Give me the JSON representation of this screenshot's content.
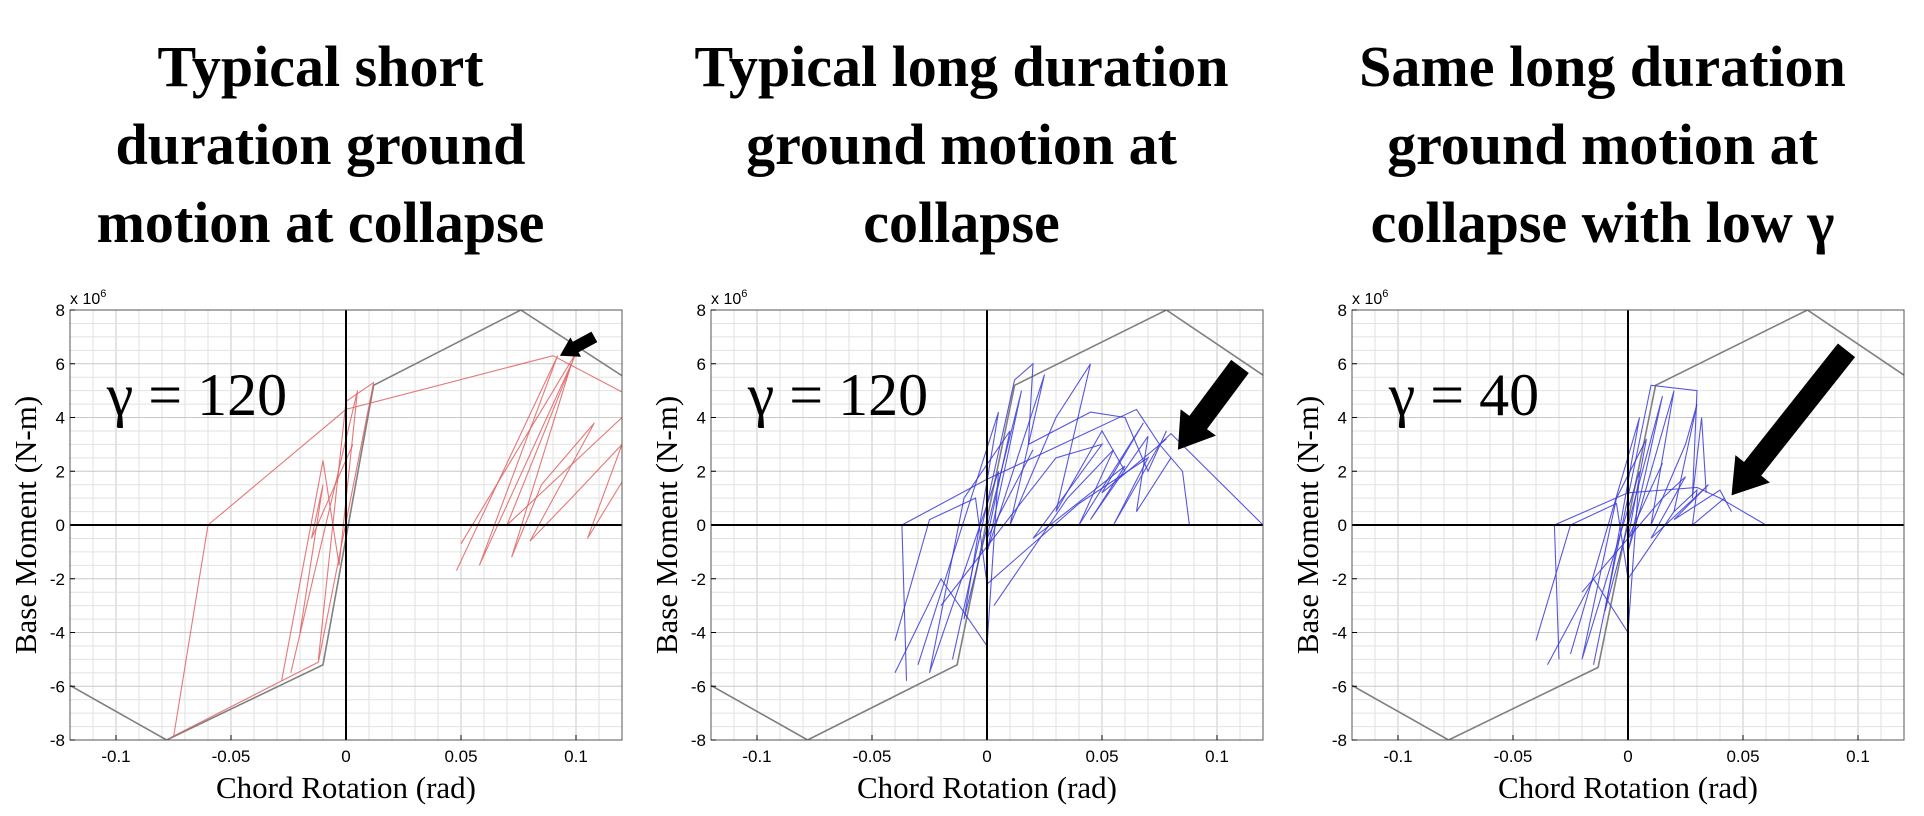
{
  "chart_data": [
    {
      "type": "line",
      "title_lines": [
        "Typical short",
        "duration ground",
        "motion at collapse"
      ],
      "xlabel": "Chord Rotation (rad)",
      "ylabel": "Base Moment (N-m)",
      "y_exponent_label": "x 10",
      "y_exponent_power": "6",
      "annotation": "γ = 120",
      "xlim": [
        -0.12,
        0.12
      ],
      "ylim": [
        -8,
        8
      ],
      "x_ticks": [
        {
          "value": -0.1,
          "label": "-0.1"
        },
        {
          "value": -0.05,
          "label": "-0.05"
        },
        {
          "value": 0,
          "label": "0"
        },
        {
          "value": 0.05,
          "label": "0.05"
        },
        {
          "value": 0.1,
          "label": "0.1"
        }
      ],
      "y_ticks": [
        {
          "value": -8,
          "label": "-8"
        },
        {
          "value": -6,
          "label": "-6"
        },
        {
          "value": -4,
          "label": "-4"
        },
        {
          "value": -2,
          "label": "-2"
        },
        {
          "value": 0,
          "label": "0"
        },
        {
          "value": 2,
          "label": "2"
        },
        {
          "value": 4,
          "label": "4"
        },
        {
          "value": 6,
          "label": "6"
        },
        {
          "value": 8,
          "label": "8"
        }
      ],
      "grid": true,
      "arrow": {
        "from": [
          0.108,
          7.0
        ],
        "to": [
          0.093,
          6.3
        ],
        "size": "small"
      },
      "series": [
        {
          "color": "#808080",
          "points": [
            [
              -0.14,
              -5.0
            ],
            [
              -0.078,
              -8.0
            ],
            [
              -0.01,
              -5.2
            ],
            [
              0.012,
              5.2
            ],
            [
              0.076,
              8.0
            ],
            [
              0.13,
              5.0
            ]
          ]
        },
        {
          "color": "#e06060",
          "points": [
            [
              -0.075,
              -7.9
            ],
            [
              -0.06,
              0.0
            ],
            [
              0.0,
              4.3
            ],
            [
              0.09,
              6.3
            ],
            [
              0.13,
              4.5
            ]
          ]
        },
        {
          "color": "#e06060",
          "points": [
            [
              -0.076,
              -7.9
            ],
            [
              -0.012,
              -5.1
            ],
            [
              0.012,
              5.3
            ],
            [
              0.0,
              4.6
            ],
            [
              -0.012,
              -5.0
            ]
          ]
        },
        {
          "color": "#e06060",
          "points": [
            [
              -0.028,
              -5.8
            ],
            [
              -0.01,
              2.4
            ],
            [
              -0.003,
              -1.5
            ],
            [
              0.005,
              5.0
            ],
            [
              -0.024,
              -5.5
            ]
          ]
        },
        {
          "color": "#e06060",
          "points": [
            [
              -0.02,
              -4.0
            ],
            [
              -0.01,
              1.5
            ],
            [
              -0.015,
              -0.5
            ],
            [
              0.003,
              3.0
            ]
          ]
        },
        {
          "color": "#e06060",
          "points": [
            [
              0.048,
              -1.7
            ],
            [
              0.092,
              6.3
            ],
            [
              0.058,
              -1.5
            ],
            [
              0.098,
              6.0
            ],
            [
              0.072,
              -1.2
            ],
            [
              0.085,
              1.5
            ],
            [
              0.108,
              3.8
            ],
            [
              0.08,
              -0.6
            ],
            [
              0.098,
              1.0
            ],
            [
              0.12,
              3.0
            ],
            [
              0.105,
              -0.5
            ],
            [
              0.12,
              1.6
            ]
          ]
        },
        {
          "color": "#e06060",
          "points": [
            [
              0.05,
              -0.7
            ],
            [
              0.1,
              6.4
            ],
            [
              0.07,
              0.0
            ],
            [
              0.12,
              4.0
            ]
          ]
        }
      ]
    },
    {
      "type": "line",
      "title_lines": [
        "Typical long duration",
        "ground motion at",
        "collapse"
      ],
      "xlabel": "Chord Rotation (rad)",
      "ylabel": "Base Moment (N-m)",
      "y_exponent_label": "x 10",
      "y_exponent_power": "6",
      "annotation": "γ = 120",
      "xlim": [
        -0.12,
        0.12
      ],
      "ylim": [
        -8,
        8
      ],
      "x_ticks": [
        {
          "value": -0.1,
          "label": "-0.1"
        },
        {
          "value": -0.05,
          "label": "-0.05"
        },
        {
          "value": 0,
          "label": "0"
        },
        {
          "value": 0.05,
          "label": "0.05"
        },
        {
          "value": 0.1,
          "label": "0.1"
        }
      ],
      "y_ticks": [
        {
          "value": -8,
          "label": "-8"
        },
        {
          "value": -6,
          "label": "-6"
        },
        {
          "value": -4,
          "label": "-4"
        },
        {
          "value": -2,
          "label": "-2"
        },
        {
          "value": 0,
          "label": "0"
        },
        {
          "value": 2,
          "label": "2"
        },
        {
          "value": 4,
          "label": "4"
        },
        {
          "value": 6,
          "label": "6"
        },
        {
          "value": 8,
          "label": "8"
        }
      ],
      "grid": true,
      "arrow": {
        "from": [
          0.11,
          5.9
        ],
        "to": [
          0.083,
          2.8
        ],
        "size": "large"
      },
      "series": [
        {
          "color": "#808080",
          "points": [
            [
              -0.14,
              -5.0
            ],
            [
              -0.078,
              -8.0
            ],
            [
              -0.013,
              -5.2
            ],
            [
              0.012,
              5.2
            ],
            [
              0.078,
              8.0
            ],
            [
              0.13,
              5.0
            ]
          ]
        },
        {
          "color": "#3a3ad8",
          "points": [
            [
              -0.035,
              -5.8
            ],
            [
              -0.037,
              0.0
            ],
            [
              0.0,
              1.7
            ],
            [
              0.065,
              4.3
            ],
            [
              0.075,
              3.0
            ],
            [
              0.08,
              3.4
            ],
            [
              0.12,
              0.0
            ]
          ]
        },
        {
          "color": "#3a3ad8",
          "points": [
            [
              -0.015,
              -5.0
            ],
            [
              0.012,
              5.4
            ],
            [
              0.02,
              6.0
            ],
            [
              0.018,
              3.0
            ],
            [
              0.045,
              4.2
            ],
            [
              0.06,
              4.0
            ],
            [
              0.07,
              2.0
            ],
            [
              0.078,
              3.5
            ]
          ]
        },
        {
          "color": "#3a3ad8",
          "points": [
            [
              -0.04,
              -4.3
            ],
            [
              -0.025,
              0.2
            ],
            [
              -0.005,
              1.0
            ],
            [
              0.0,
              -2.2
            ],
            [
              0.04,
              0.8
            ],
            [
              0.07,
              2.5
            ],
            [
              0.055,
              0.0
            ],
            [
              0.075,
              3.0
            ],
            [
              0.085,
              2.0
            ],
            [
              0.088,
              0.0
            ]
          ]
        },
        {
          "color": "#3a3ad8",
          "points": [
            [
              -0.03,
              -5.2
            ],
            [
              0.005,
              4.2
            ],
            [
              -0.01,
              -3.5
            ],
            [
              0.015,
              5.0
            ],
            [
              0.0,
              -1.0
            ],
            [
              0.025,
              5.6
            ],
            [
              0.01,
              0.0
            ],
            [
              0.03,
              4.0
            ],
            [
              0.045,
              6.0
            ],
            [
              0.03,
              0.5
            ],
            [
              0.05,
              3.5
            ],
            [
              0.06,
              2.0
            ]
          ]
        },
        {
          "color": "#3a3ad8",
          "points": [
            [
              -0.02,
              -3.0
            ],
            [
              0.03,
              2.5
            ],
            [
              0.05,
              3.0
            ],
            [
              0.02,
              -0.5
            ],
            [
              0.06,
              2.2
            ],
            [
              0.045,
              0.2
            ],
            [
              0.07,
              3.3
            ],
            [
              0.065,
              0.5
            ],
            [
              0.08,
              2.5
            ]
          ]
        },
        {
          "color": "#3a3ad8",
          "points": [
            [
              -0.04,
              -5.5
            ],
            [
              -0.02,
              -2.0
            ],
            [
              0.0,
              -4.5
            ],
            [
              0.005,
              2.0
            ],
            [
              -0.025,
              -5.5
            ],
            [
              -0.01,
              1.0
            ],
            [
              0.01,
              3.5
            ],
            [
              0.0,
              -0.5
            ],
            [
              0.02,
              2.8
            ]
          ]
        },
        {
          "color": "#3a3ad8",
          "points": [
            [
              0.003,
              -3.0
            ],
            [
              0.035,
              1.0
            ],
            [
              0.055,
              2.8
            ],
            [
              0.04,
              0.0
            ],
            [
              0.068,
              3.8
            ],
            [
              0.05,
              1.2
            ],
            [
              0.078,
              3.2
            ]
          ]
        }
      ]
    },
    {
      "type": "line",
      "title_lines": [
        "Same long duration",
        "ground motion at",
        "collapse with low γ"
      ],
      "xlabel": "Chord Rotation (rad)",
      "ylabel": "Base Moment (N-m)",
      "y_exponent_label": "x 10",
      "y_exponent_power": "6",
      "annotation": "γ = 40",
      "xlim": [
        -0.12,
        0.12
      ],
      "ylim": [
        -8,
        8
      ],
      "x_ticks": [
        {
          "value": -0.1,
          "label": "-0.1"
        },
        {
          "value": -0.05,
          "label": "-0.05"
        },
        {
          "value": 0,
          "label": "0"
        },
        {
          "value": 0.05,
          "label": "0.05"
        },
        {
          "value": 0.1,
          "label": "0.1"
        }
      ],
      "y_ticks": [
        {
          "value": -8,
          "label": "-8"
        },
        {
          "value": -6,
          "label": "-6"
        },
        {
          "value": -4,
          "label": "-4"
        },
        {
          "value": -2,
          "label": "-2"
        },
        {
          "value": 0,
          "label": "0"
        },
        {
          "value": 2,
          "label": "2"
        },
        {
          "value": 4,
          "label": "4"
        },
        {
          "value": 6,
          "label": "6"
        },
        {
          "value": 8,
          "label": "8"
        }
      ],
      "grid": true,
      "arrow": {
        "from": [
          0.095,
          6.5
        ],
        "to": [
          0.045,
          1.1
        ],
        "size": "large"
      },
      "series": [
        {
          "color": "#808080",
          "points": [
            [
              -0.14,
              -5.0
            ],
            [
              -0.078,
              -8.0
            ],
            [
              -0.013,
              -5.3
            ],
            [
              0.012,
              5.2
            ],
            [
              0.078,
              8.0
            ],
            [
              0.13,
              5.0
            ]
          ]
        },
        {
          "color": "#3a3ad8",
          "points": [
            [
              -0.03,
              -5.0
            ],
            [
              -0.032,
              0.0
            ],
            [
              0.0,
              1.2
            ],
            [
              0.03,
              1.4
            ],
            [
              0.04,
              1.0
            ],
            [
              0.06,
              0.0
            ]
          ]
        },
        {
          "color": "#3a3ad8",
          "points": [
            [
              -0.015,
              -5.2
            ],
            [
              0.01,
              5.2
            ],
            [
              0.03,
              5.0
            ],
            [
              0.028,
              1.0
            ],
            [
              0.032,
              4.0
            ],
            [
              0.034,
              1.2
            ]
          ]
        },
        {
          "color": "#3a3ad8",
          "points": [
            [
              -0.04,
              -4.3
            ],
            [
              -0.025,
              0.0
            ],
            [
              -0.005,
              0.8
            ],
            [
              0.0,
              -2.0
            ],
            [
              0.02,
              0.5
            ],
            [
              0.03,
              1.3
            ],
            [
              0.028,
              0.0
            ],
            [
              0.042,
              1.0
            ]
          ]
        },
        {
          "color": "#3a3ad8",
          "points": [
            [
              -0.025,
              -4.8
            ],
            [
              0.005,
              4.0
            ],
            [
              -0.01,
              -3.2
            ],
            [
              0.015,
              4.8
            ],
            [
              0.0,
              -1.0
            ],
            [
              0.02,
              5.0
            ],
            [
              0.01,
              0.0
            ],
            [
              0.025,
              3.0
            ],
            [
              0.03,
              4.5
            ],
            [
              0.02,
              0.5
            ]
          ]
        },
        {
          "color": "#3a3ad8",
          "points": [
            [
              -0.035,
              -5.2
            ],
            [
              -0.015,
              -2.0
            ],
            [
              0.0,
              -4.0
            ],
            [
              0.005,
              2.0
            ],
            [
              -0.02,
              -5.0
            ],
            [
              -0.005,
              1.0
            ],
            [
              0.008,
              3.2
            ],
            [
              0.0,
              -0.5
            ],
            [
              0.015,
              2.3
            ]
          ]
        },
        {
          "color": "#3a3ad8",
          "points": [
            [
              -0.02,
              -2.5
            ],
            [
              0.015,
              1.0
            ],
            [
              0.025,
              1.8
            ],
            [
              0.01,
              -0.5
            ],
            [
              0.035,
              1.5
            ],
            [
              0.02,
              0.2
            ],
            [
              0.04,
              1.3
            ],
            [
              0.045,
              0.5
            ]
          ]
        }
      ]
    }
  ]
}
